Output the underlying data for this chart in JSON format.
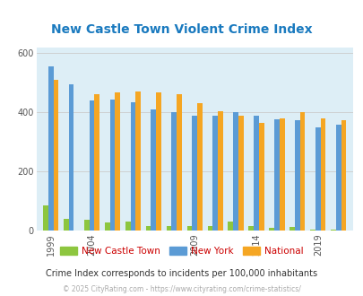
{
  "title": "New Castle Town Violent Crime Index",
  "title_color": "#1a7abf",
  "background_color": "#ddeef6",
  "fig_bg_color": "#ffffff",
  "bar_groups": [
    {
      "label": "1999",
      "nc": 85,
      "ny": 555,
      "nat": 510
    },
    {
      "label": "",
      "nc": 40,
      "ny": 495,
      "nat": 0
    },
    {
      "label": "2004",
      "nc": 38,
      "ny": 440,
      "nat": 463
    },
    {
      "label": "",
      "nc": 28,
      "ny": 445,
      "nat": 468
    },
    {
      "label": "",
      "nc": 30,
      "ny": 435,
      "nat": 470
    },
    {
      "label": "",
      "nc": 15,
      "ny": 410,
      "nat": 468
    },
    {
      "label": "",
      "nc": 15,
      "ny": 400,
      "nat": 462
    },
    {
      "label": "2009",
      "nc": 15,
      "ny": 390,
      "nat": 430
    },
    {
      "label": "",
      "nc": 15,
      "ny": 388,
      "nat": 404
    },
    {
      "label": "",
      "nc": 30,
      "ny": 400,
      "nat": 390
    },
    {
      "label": "2014",
      "nc": 15,
      "ny": 390,
      "nat": 365
    },
    {
      "label": "",
      "nc": 10,
      "ny": 378,
      "nat": 380
    },
    {
      "label": "",
      "nc": 12,
      "ny": 375,
      "nat": 400
    },
    {
      "label": "2019",
      "nc": 5,
      "ny": 350,
      "nat": 380
    },
    {
      "label": "",
      "nc": 5,
      "ny": 358,
      "nat": 375
    }
  ],
  "ylim": [
    0,
    620
  ],
  "yticks": [
    0,
    200,
    400,
    600
  ],
  "bar_width": 0.25,
  "new_castle_color": "#8dc63f",
  "new_york_color": "#5b9bd5",
  "national_color": "#f5a623",
  "legend_label_color": "#cc0000",
  "subtitle": "Crime Index corresponds to incidents per 100,000 inhabitants",
  "footer": "© 2025 CityRating.com - https://www.cityrating.com/crime-statistics/",
  "subtitle_color": "#333333",
  "footer_color": "#aaaaaa"
}
